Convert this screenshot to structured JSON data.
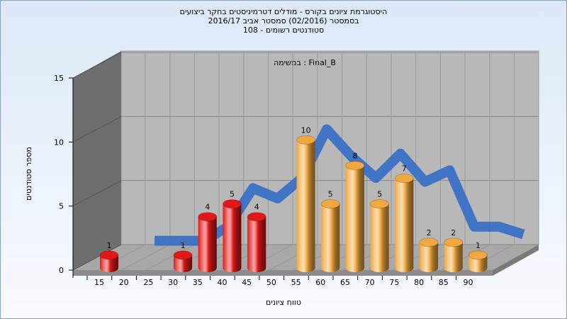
{
  "chart_data": {
    "type": "bar3d",
    "title": [
      "היסטוגרמת ציונים בקורס - מודלים דטרמיניסטים בחקר ביצועים",
      "בסמסטר  (02/2016)  סמסטר אביב 2016/17",
      "סטודנטים רשומים - 108"
    ],
    "annotation": "במשימה : Final_B",
    "x_label": "טווח ציונים",
    "y_label": "מספר סטודנטים",
    "categories": [
      "15",
      "20",
      "25",
      "30",
      "35",
      "40",
      "45",
      "50",
      "55",
      "60",
      "65",
      "70",
      "75",
      "80",
      "85",
      "90"
    ],
    "values": [
      1,
      0,
      0,
      1,
      4,
      5,
      4,
      0,
      10,
      5,
      8,
      5,
      7,
      2,
      2,
      1
    ],
    "colors": [
      "#e01818",
      "#e01818",
      "#e01818",
      "#e01818",
      "#e01818",
      "#e01818",
      "#e01818",
      "#e01818",
      "#f0a840",
      "#f0a840",
      "#f0a840",
      "#f0a840",
      "#f0a840",
      "#f0a840",
      "#f0a840",
      "#f0a840"
    ],
    "trend_values": [
      0.3,
      0.3,
      0.3,
      1.4,
      4.4,
      3.6,
      5.2,
      9,
      6.9,
      5.2,
      7.1,
      4.9,
      5.8,
      1.4,
      1.4,
      0.8
    ],
    "trend_color": "#3a70c4",
    "ylim": [
      0,
      15
    ],
    "yticks": [
      0,
      5,
      10,
      15
    ],
    "grid": true
  }
}
